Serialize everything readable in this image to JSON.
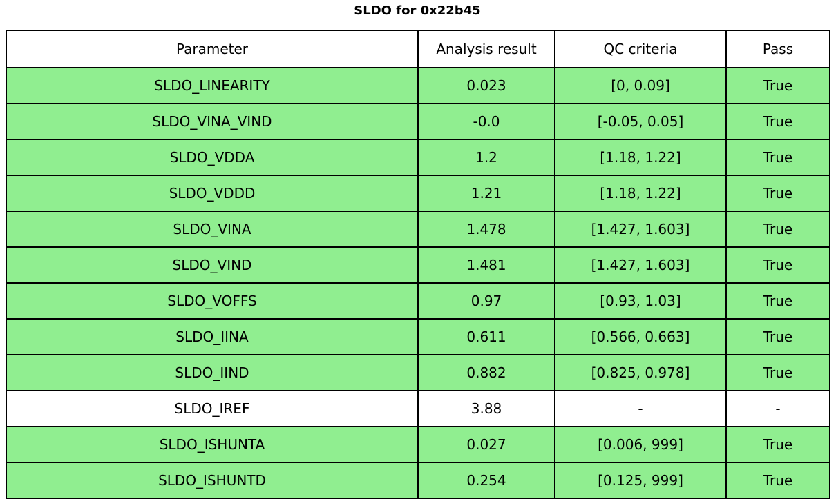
{
  "chart_data": {
    "type": "table",
    "title": "SLDO for 0x22b45",
    "columns": [
      "Parameter",
      "Analysis result",
      "QC criteria",
      "Pass"
    ],
    "rows": [
      {
        "parameter": "SLDO_LINEARITY",
        "analysis_result": "0.023",
        "qc_criteria": "[0, 0.09]",
        "pass": "True",
        "highlight": true
      },
      {
        "parameter": "SLDO_VINA_VIND",
        "analysis_result": "-0.0",
        "qc_criteria": "[-0.05, 0.05]",
        "pass": "True",
        "highlight": true
      },
      {
        "parameter": "SLDO_VDDA",
        "analysis_result": "1.2",
        "qc_criteria": "[1.18, 1.22]",
        "pass": "True",
        "highlight": true
      },
      {
        "parameter": "SLDO_VDDD",
        "analysis_result": "1.21",
        "qc_criteria": "[1.18, 1.22]",
        "pass": "True",
        "highlight": true
      },
      {
        "parameter": "SLDO_VINA",
        "analysis_result": "1.478",
        "qc_criteria": "[1.427, 1.603]",
        "pass": "True",
        "highlight": true
      },
      {
        "parameter": "SLDO_VIND",
        "analysis_result": "1.481",
        "qc_criteria": "[1.427, 1.603]",
        "pass": "True",
        "highlight": true
      },
      {
        "parameter": "SLDO_VOFFS",
        "analysis_result": "0.97",
        "qc_criteria": "[0.93, 1.03]",
        "pass": "True",
        "highlight": true
      },
      {
        "parameter": "SLDO_IINA",
        "analysis_result": "0.611",
        "qc_criteria": "[0.566, 0.663]",
        "pass": "True",
        "highlight": true
      },
      {
        "parameter": "SLDO_IIND",
        "analysis_result": "0.882",
        "qc_criteria": "[0.825, 0.978]",
        "pass": "True",
        "highlight": true
      },
      {
        "parameter": "SLDO_IREF",
        "analysis_result": "3.88",
        "qc_criteria": "-",
        "pass": "-",
        "highlight": false
      },
      {
        "parameter": "SLDO_ISHUNTA",
        "analysis_result": "0.027",
        "qc_criteria": "[0.006, 999]",
        "pass": "True",
        "highlight": true
      },
      {
        "parameter": "SLDO_ISHUNTD",
        "analysis_result": "0.254",
        "qc_criteria": "[0.125, 999]",
        "pass": "True",
        "highlight": true
      }
    ]
  },
  "colors": {
    "pass_row": "#90ee90",
    "default_row": "#ffffff",
    "border": "#000000",
    "text": "#000000"
  }
}
